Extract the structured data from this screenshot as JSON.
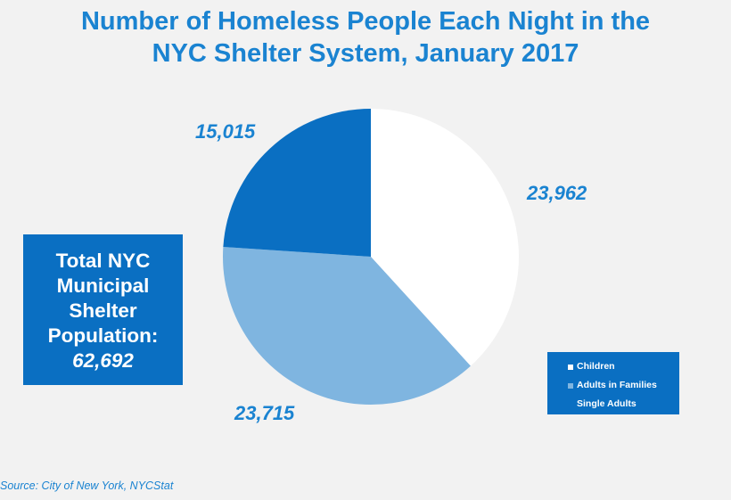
{
  "chart_data": {
    "type": "pie",
    "title_lines": [
      "Number of Homeless People Each Night in the",
      "NYC Shelter System, January 2017"
    ],
    "slices": [
      {
        "name": "Children",
        "value": 23962,
        "label": "23,962",
        "color": "#ffffff"
      },
      {
        "name": "Adults in Families",
        "value": 23715,
        "label": "23,715",
        "color": "#7fb5e0"
      },
      {
        "name": "Single Adults",
        "value": 15015,
        "label": "15,015",
        "color": "#0a6fc2"
      }
    ],
    "legend": {
      "placement": "bottom-right",
      "items": [
        {
          "name": "Children",
          "color": "#ffffff"
        },
        {
          "name": "Adults in Families",
          "color": "#7fb5e0"
        },
        {
          "name": "Single Adults",
          "color": "#0a6fc2"
        }
      ]
    }
  },
  "total_box": {
    "lines": [
      "Total NYC",
      "Municipal",
      "Shelter",
      "Population:"
    ],
    "value": "62,692"
  },
  "source": "Source:  City of New York, NYCStat",
  "colors": {
    "accent": "#1a83d1",
    "box": "#0a6fc2",
    "background": "#f2f2f2"
  }
}
